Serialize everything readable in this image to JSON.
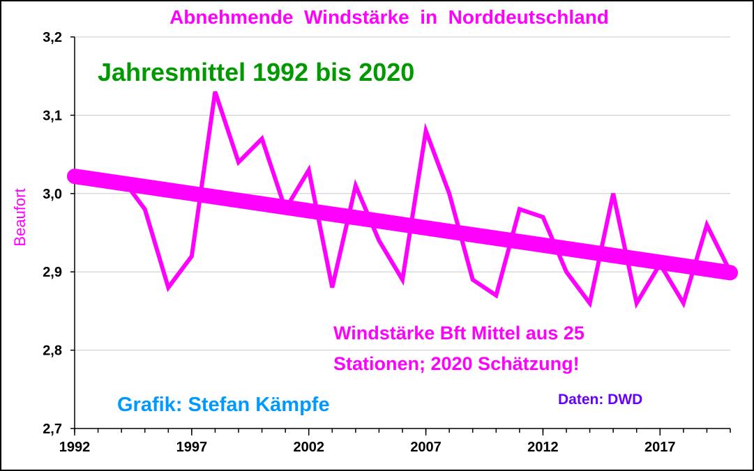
{
  "chart_data": {
    "type": "line",
    "title": "Abnehmende  Windstärke  in  Norddeutschland",
    "subtitle": "Jahresmittel 1992 bis 2020",
    "ylabel": "Beaufort",
    "xlabel": "",
    "ylim": [
      2.7,
      3.2
    ],
    "xlim": [
      1992,
      2020
    ],
    "yticks": [
      "2,7",
      "2,8",
      "2,9",
      "3,0",
      "3,1",
      "3,2"
    ],
    "xticks": [
      "1992",
      "1997",
      "2002",
      "2007",
      "2012",
      "2017"
    ],
    "grid": "horizontal",
    "x": [
      1992,
      1993,
      1994,
      1995,
      1996,
      1997,
      1998,
      1999,
      2000,
      2001,
      2002,
      2003,
      2004,
      2005,
      2006,
      2007,
      2008,
      2009,
      2010,
      2011,
      2012,
      2013,
      2014,
      2015,
      2016,
      2017,
      2018,
      2019,
      2020
    ],
    "series": [
      {
        "values": [
          3.02,
          3.02,
          3.02,
          2.98,
          2.88,
          2.92,
          3.13,
          3.04,
          3.07,
          2.98,
          3.03,
          2.88,
          3.01,
          2.94,
          2.89,
          3.08,
          3.0,
          2.89,
          2.87,
          2.98,
          2.97,
          2.9,
          2.86,
          3.0,
          2.86,
          2.91,
          2.86,
          2.96,
          2.9
        ],
        "color": "#ff00ff",
        "style": "line"
      },
      {
        "trend_start": [
          1992,
          3.022
        ],
        "trend_end": [
          2020,
          2.899
        ],
        "color": "#ff00ff",
        "style": "trend"
      }
    ],
    "annotations": {
      "note_line1": "Windstärke Bft Mittel aus 25",
      "note_line2": "Stationen; 2020 Schätzung!",
      "source": "Daten: DWD",
      "credit": "Grafik: Stefan Kämpfe"
    },
    "colors": {
      "title": "#ff00ff",
      "subtitle": "#009900",
      "ylabel": "#ff00ff",
      "note": "#ff00ff",
      "source": "#6600ff",
      "credit": "#0099ff",
      "grid": "#c8c8c8"
    }
  }
}
